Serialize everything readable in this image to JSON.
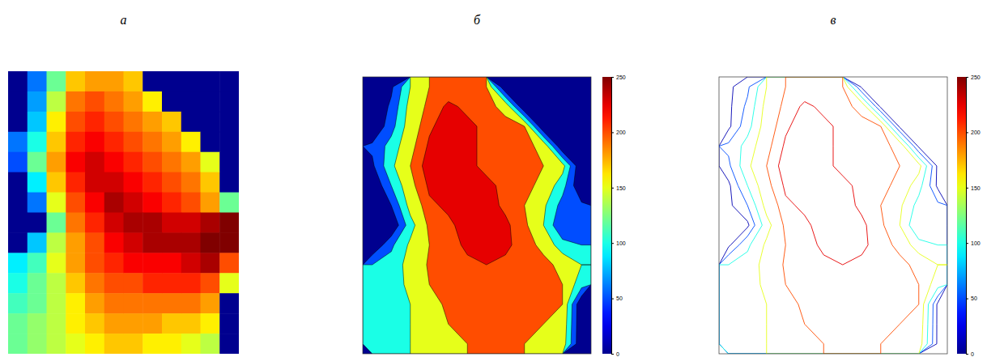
{
  "chart_data": [
    {
      "type": "heatmap",
      "title": "а",
      "tick_labels": false,
      "color_range": [
        0,
        250
      ],
      "cells": [
        [
          0,
          60,
          120,
          170,
          180,
          180,
          170,
          0,
          0,
          0,
          0,
          0
        ],
        [
          0,
          70,
          140,
          190,
          200,
          190,
          180,
          160,
          0,
          0,
          0,
          0
        ],
        [
          0,
          80,
          160,
          200,
          210,
          200,
          190,
          180,
          170,
          0,
          0,
          0
        ],
        [
          60,
          100,
          170,
          210,
          220,
          210,
          200,
          190,
          180,
          160,
          0,
          0
        ],
        [
          50,
          120,
          180,
          220,
          230,
          220,
          210,
          200,
          190,
          180,
          150,
          0
        ],
        [
          0,
          90,
          170,
          210,
          230,
          230,
          220,
          210,
          200,
          190,
          170,
          0
        ],
        [
          0,
          60,
          150,
          200,
          220,
          240,
          230,
          220,
          210,
          200,
          180,
          120
        ],
        [
          0,
          0,
          120,
          190,
          210,
          230,
          240,
          240,
          230,
          230,
          240,
          250
        ],
        [
          0,
          80,
          140,
          180,
          200,
          220,
          230,
          240,
          240,
          240,
          250,
          250
        ],
        [
          90,
          110,
          150,
          180,
          200,
          210,
          220,
          220,
          220,
          230,
          240,
          200
        ],
        [
          100,
          120,
          140,
          170,
          190,
          200,
          200,
          210,
          210,
          210,
          200,
          150
        ],
        [
          110,
          120,
          140,
          160,
          180,
          190,
          190,
          190,
          190,
          190,
          180,
          0
        ],
        [
          120,
          130,
          140,
          160,
          170,
          180,
          180,
          180,
          170,
          170,
          160,
          0
        ],
        [
          120,
          130,
          140,
          150,
          160,
          170,
          170,
          160,
          160,
          150,
          140,
          0
        ]
      ]
    },
    {
      "type": "filled_contour",
      "title": "б",
      "tick_labels": false,
      "color_range": [
        0,
        250
      ],
      "color_ticks": [
        0,
        50,
        100,
        150,
        200,
        250
      ],
      "levels": [
        50,
        100,
        150,
        200,
        225
      ],
      "cells": [
        [
          0,
          40,
          150,
          200,
          210,
          210,
          200,
          0,
          0,
          0,
          0,
          0
        ],
        [
          0,
          60,
          170,
          210,
          230,
          220,
          210,
          190,
          0,
          0,
          0,
          0
        ],
        [
          0,
          80,
          180,
          220,
          240,
          230,
          220,
          210,
          200,
          0,
          0,
          0
        ],
        [
          60,
          120,
          190,
          230,
          240,
          230,
          220,
          210,
          210,
          190,
          0,
          0
        ],
        [
          40,
          140,
          200,
          240,
          245,
          230,
          220,
          215,
          210,
          200,
          170,
          0
        ],
        [
          0,
          100,
          190,
          230,
          240,
          240,
          230,
          220,
          210,
          190,
          120,
          0
        ],
        [
          0,
          50,
          170,
          220,
          230,
          245,
          235,
          220,
          200,
          160,
          80,
          60
        ],
        [
          0,
          0,
          130,
          210,
          220,
          235,
          240,
          230,
          210,
          150,
          50,
          70
        ],
        [
          0,
          90,
          160,
          200,
          215,
          230,
          235,
          230,
          215,
          190,
          120,
          100
        ],
        [
          100,
          120,
          170,
          205,
          215,
          220,
          225,
          220,
          215,
          210,
          190,
          150
        ],
        [
          110,
          130,
          160,
          200,
          210,
          215,
          215,
          215,
          210,
          210,
          200,
          120
        ],
        [
          120,
          130,
          150,
          190,
          205,
          210,
          210,
          210,
          205,
          205,
          200,
          0
        ],
        [
          130,
          140,
          150,
          180,
          200,
          205,
          205,
          205,
          200,
          200,
          190,
          0
        ],
        [
          130,
          140,
          150,
          170,
          190,
          200,
          200,
          200,
          200,
          195,
          180,
          0
        ]
      ]
    },
    {
      "type": "contour",
      "title": "в",
      "tick_labels": false,
      "color_range": [
        0,
        250
      ],
      "color_ticks": [
        0,
        50,
        100,
        150,
        200,
        250
      ],
      "levels": [
        10,
        50,
        100,
        150,
        200,
        225
      ],
      "cells": [
        [
          0,
          40,
          150,
          200,
          210,
          210,
          200,
          0,
          0,
          0,
          0,
          0
        ],
        [
          0,
          60,
          170,
          210,
          230,
          220,
          210,
          190,
          0,
          0,
          0,
          0
        ],
        [
          0,
          80,
          180,
          220,
          240,
          230,
          220,
          210,
          200,
          0,
          0,
          0
        ],
        [
          60,
          120,
          190,
          230,
          240,
          230,
          220,
          210,
          210,
          190,
          0,
          0
        ],
        [
          40,
          140,
          200,
          240,
          245,
          230,
          220,
          215,
          210,
          200,
          170,
          0
        ],
        [
          0,
          100,
          190,
          230,
          240,
          240,
          230,
          220,
          210,
          190,
          120,
          0
        ],
        [
          0,
          50,
          170,
          220,
          230,
          245,
          235,
          220,
          200,
          160,
          80,
          60
        ],
        [
          0,
          0,
          130,
          210,
          220,
          235,
          240,
          230,
          210,
          150,
          50,
          70
        ],
        [
          0,
          90,
          160,
          200,
          215,
          230,
          235,
          230,
          215,
          190,
          120,
          100
        ],
        [
          100,
          120,
          170,
          205,
          215,
          220,
          225,
          220,
          215,
          210,
          190,
          150
        ],
        [
          110,
          130,
          160,
          200,
          210,
          215,
          215,
          215,
          210,
          210,
          200,
          120
        ],
        [
          120,
          130,
          150,
          190,
          205,
          210,
          210,
          210,
          205,
          205,
          200,
          0
        ],
        [
          130,
          140,
          150,
          180,
          200,
          205,
          205,
          205,
          200,
          200,
          190,
          0
        ],
        [
          130,
          140,
          150,
          170,
          190,
          200,
          200,
          200,
          200,
          195,
          180,
          0
        ]
      ]
    }
  ]
}
